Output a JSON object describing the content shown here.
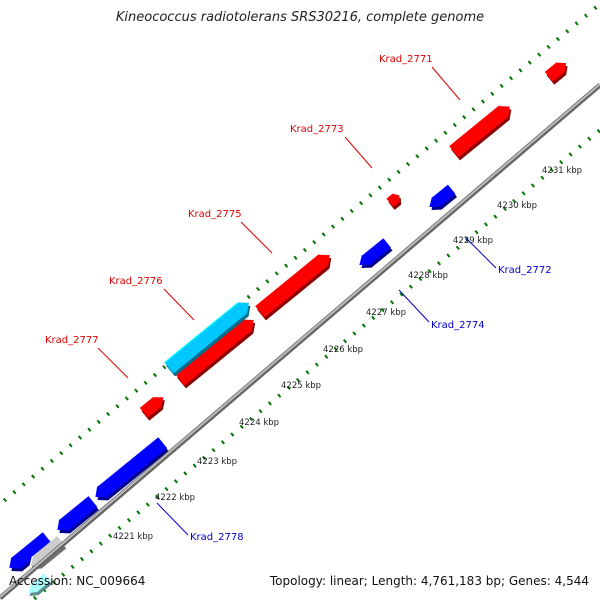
{
  "header": {
    "title": "Kineococcus radiotolerans SRS30216, complete genome"
  },
  "footer": {
    "accession": "Accession: NC_009664",
    "summary": "Topology: linear; Length: 4,761,183 bp; Genes: 4,544"
  },
  "colors": {
    "background": "#ffffff",
    "backbone": "#888888",
    "forward_gene": "#ff0000",
    "reverse_gene": "#0000ff",
    "highlight_gene": "#00c8ff",
    "pale_gene": "#aaffff",
    "tick": "#007700",
    "forward_label": "#e00000",
    "reverse_label": "#0000cc"
  },
  "ticks": [
    "4221 kbp",
    "4222 kbp",
    "4223 kbp",
    "4224 kbp",
    "4225 kbp",
    "4226 kbp",
    "4227 kbp",
    "4228 kbp",
    "4229 kbp",
    "4230 kbp",
    "4231 kbp"
  ],
  "gene_labels": {
    "Krad_2771": "Krad_2771",
    "Krad_2772": "Krad_2772",
    "Krad_2773": "Krad_2773",
    "Krad_2774": "Krad_2774",
    "Krad_2775": "Krad_2775",
    "Krad_2776": "Krad_2776",
    "Krad_2777": "Krad_2777",
    "Krad_2778": "Krad_2778"
  }
}
